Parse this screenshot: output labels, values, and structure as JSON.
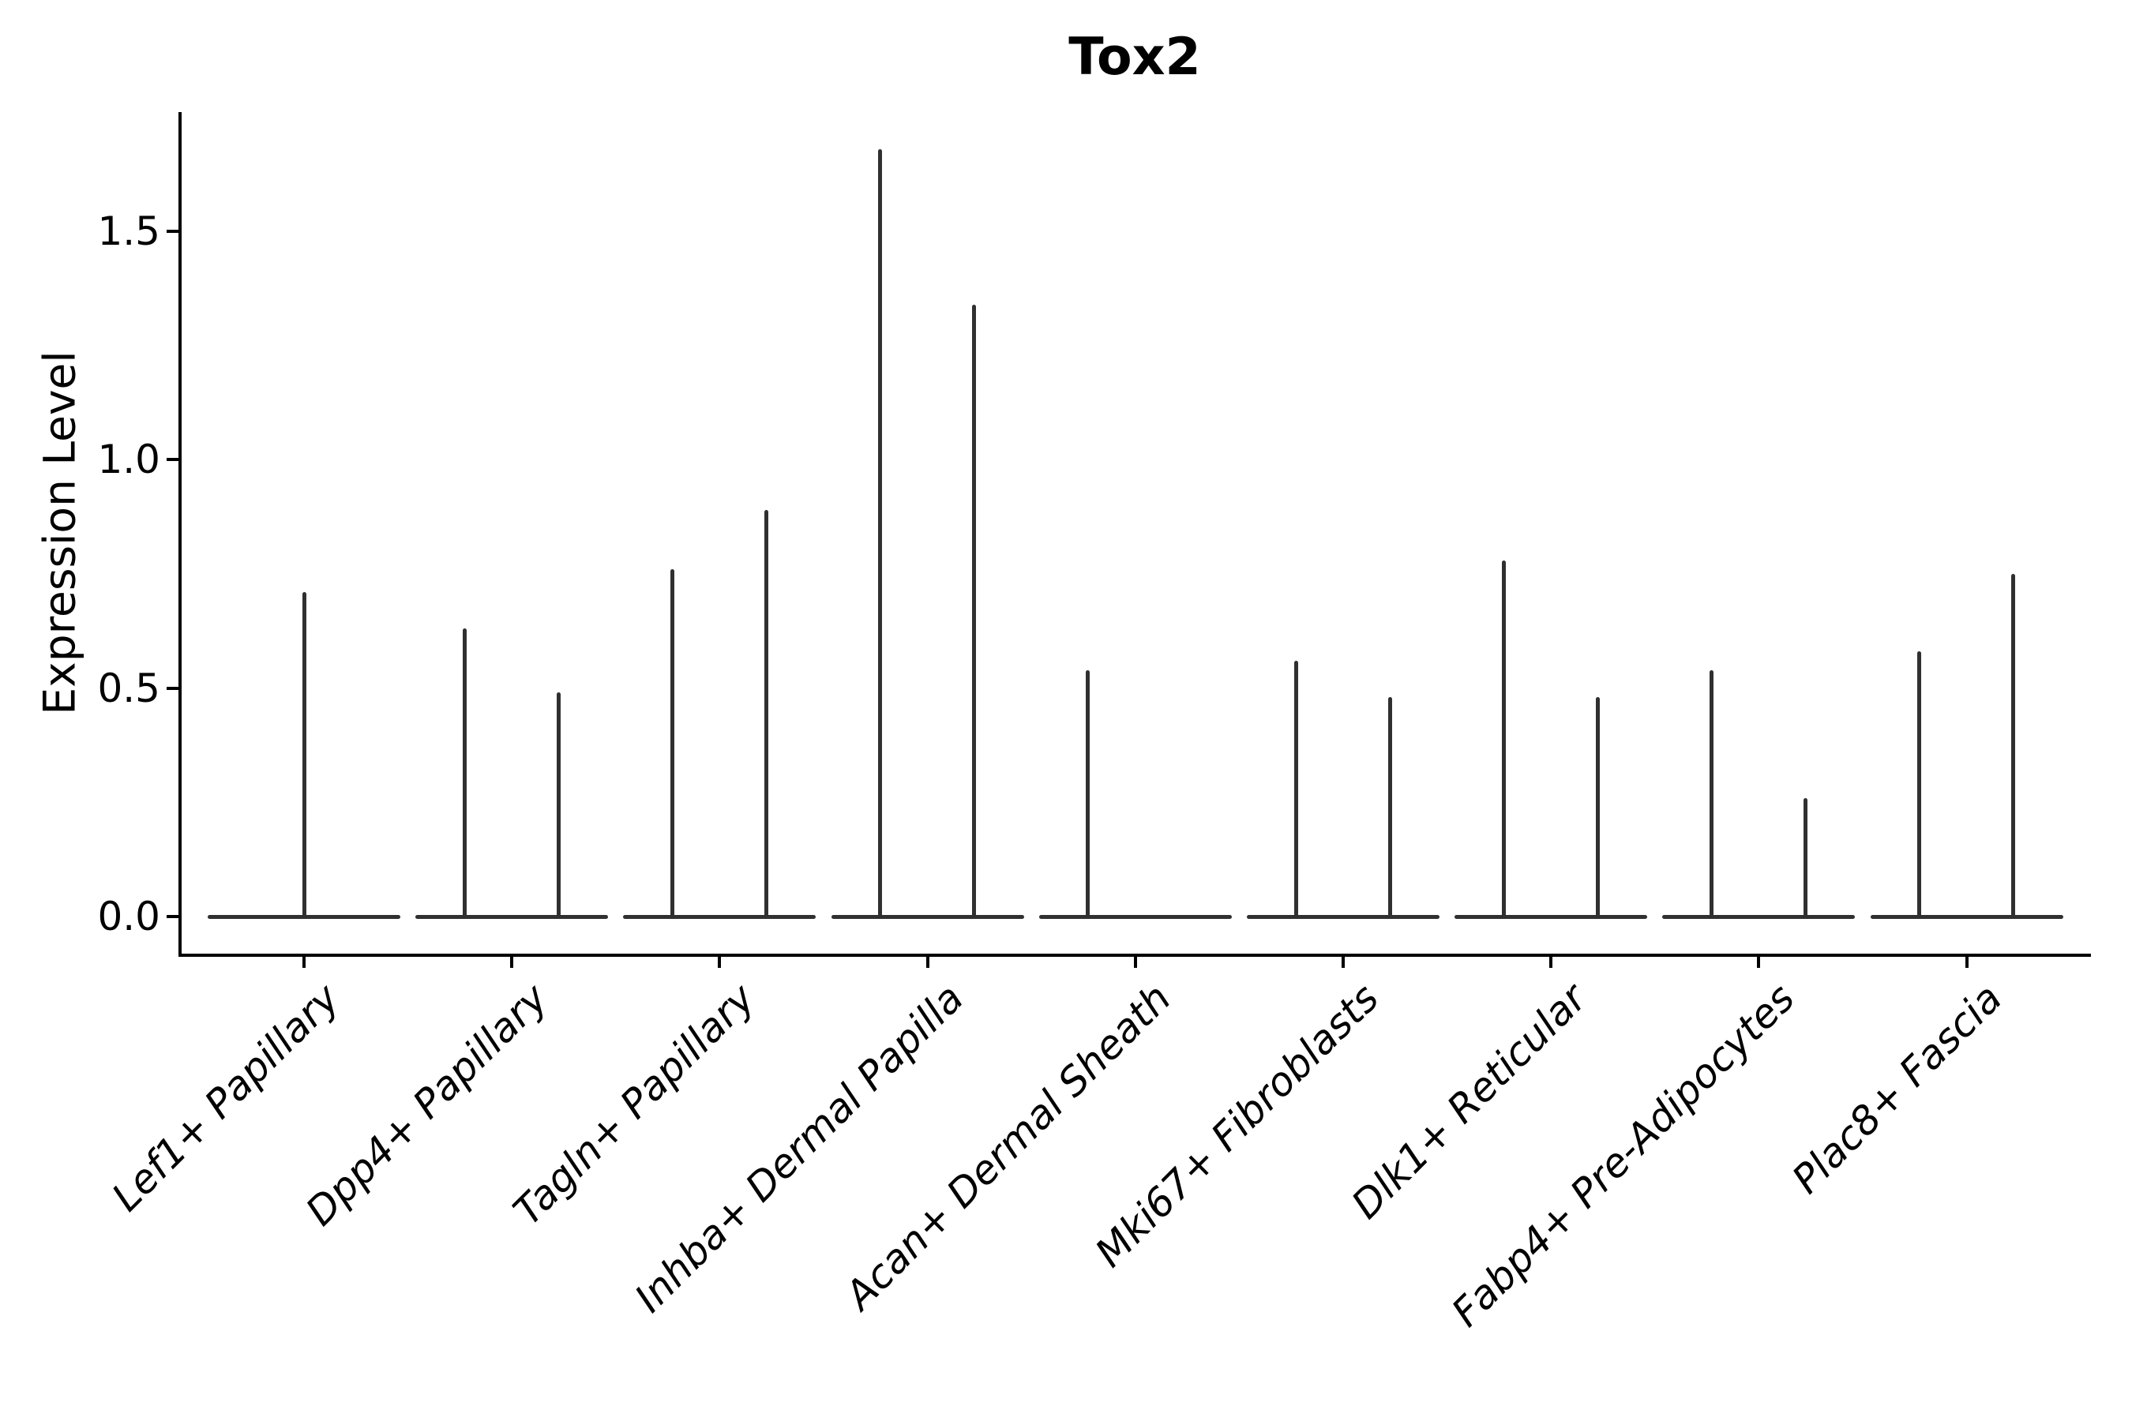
{
  "title": "Tox2",
  "y_axis": {
    "label": "Expression Level",
    "tick_labels": [
      "0.0",
      "0.5",
      "1.0",
      "1.5"
    ]
  },
  "chart_data": {
    "type": "violin",
    "title": "Tox2",
    "ylabel": "Expression Level",
    "xlabel": "",
    "ylim": [
      0,
      1.77
    ],
    "yticks": [
      0.0,
      0.5,
      1.0,
      1.5
    ],
    "grid": false,
    "legend_position": "none",
    "line_color": "#303030",
    "categories": [
      "Lef1+ Papillary",
      "Dpp4+ Papillary",
      "Tagln+ Papillary",
      "Inhba+ Dermal Papilla",
      "Acan+ Dermal Sheath",
      "Mki67+ Fibroblasts",
      "Dlk1+ Reticular",
      "Fabp4+ Pre-Adipocytes",
      "Plac8+ Fascia"
    ],
    "violins": [
      {
        "category": "Lef1+ Papillary",
        "baseline_value": 0.0,
        "spikes": [
          {
            "side": "center",
            "max": 0.71
          }
        ]
      },
      {
        "category": "Dpp4+ Papillary",
        "baseline_value": 0.0,
        "spikes": [
          {
            "side": "left",
            "max": 0.63
          },
          {
            "side": "right",
            "max": 0.49
          }
        ]
      },
      {
        "category": "Tagln+ Papillary",
        "baseline_value": 0.0,
        "spikes": [
          {
            "side": "left",
            "max": 0.76
          },
          {
            "side": "right",
            "max": 0.89
          }
        ]
      },
      {
        "category": "Inhba+ Dermal Papilla",
        "baseline_value": 0.0,
        "spikes": [
          {
            "side": "left",
            "max": 1.68
          },
          {
            "side": "right",
            "max": 1.34
          }
        ]
      },
      {
        "category": "Acan+ Dermal Sheath",
        "baseline_value": 0.0,
        "spikes": [
          {
            "side": "left",
            "max": 0.54
          }
        ]
      },
      {
        "category": "Mki67+ Fibroblasts",
        "baseline_value": 0.0,
        "spikes": [
          {
            "side": "left",
            "max": 0.56
          },
          {
            "side": "right",
            "max": 0.48
          }
        ]
      },
      {
        "category": "Dlk1+ Reticular",
        "baseline_value": 0.0,
        "spikes": [
          {
            "side": "left",
            "max": 0.78
          },
          {
            "side": "right",
            "max": 0.48
          }
        ]
      },
      {
        "category": "Fabp4+ Pre-Adipocytes",
        "baseline_value": 0.0,
        "spikes": [
          {
            "side": "left",
            "max": 0.54
          },
          {
            "side": "right",
            "max": 0.26
          }
        ]
      },
      {
        "category": "Plac8+ Fascia",
        "baseline_value": 0.0,
        "spikes": [
          {
            "side": "left",
            "max": 0.58
          },
          {
            "side": "right",
            "max": 0.75
          }
        ]
      }
    ]
  }
}
